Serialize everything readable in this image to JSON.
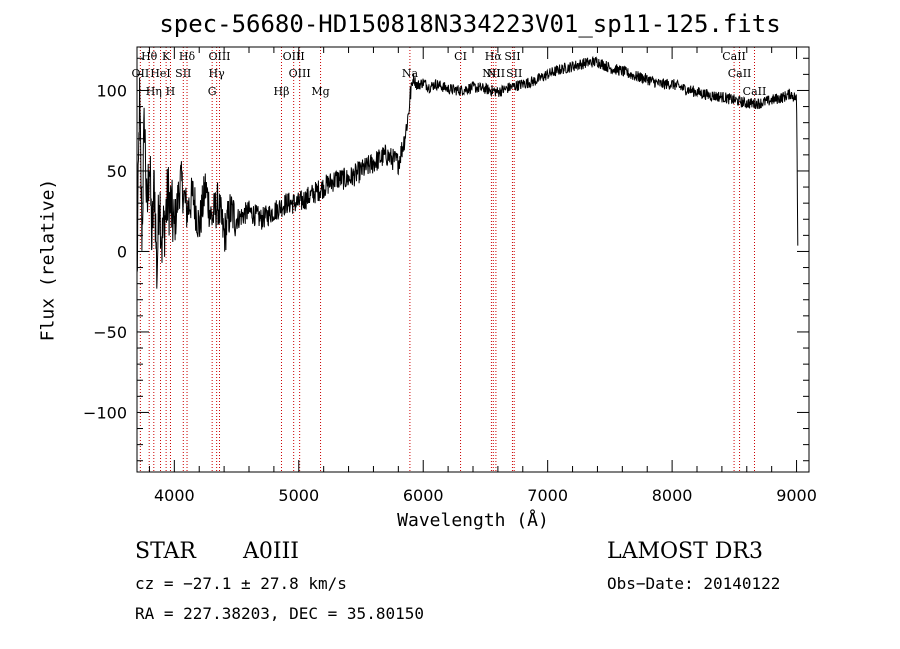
{
  "chart_data": {
    "type": "line",
    "title": "spec-56680-HD150818N334223V01_sp11-125.fits",
    "xlabel": "Wavelength (Å)",
    "ylabel": "Flux (relative)",
    "xlim": [
      3700,
      9100
    ],
    "ylim": [
      -137,
      127
    ],
    "xticks": [
      4000,
      5000,
      6000,
      7000,
      8000,
      9000
    ],
    "xtick_labels": [
      "4000",
      "5000",
      "6000",
      "7000",
      "8000",
      "9000"
    ],
    "yticks": [
      -100,
      -50,
      0,
      50,
      100
    ],
    "ytick_labels": [
      "−100",
      "−50",
      "0",
      "50",
      "100"
    ],
    "series": [
      {
        "name": "spectrum",
        "x": [
          3700,
          3720,
          3740,
          3760,
          3780,
          3800,
          3820,
          3840,
          3860,
          3880,
          3900,
          3950,
          4000,
          4050,
          4100,
          4150,
          4200,
          4250,
          4300,
          4350,
          4400,
          4450,
          4500,
          4600,
          4700,
          4800,
          4900,
          5000,
          5100,
          5200,
          5300,
          5400,
          5500,
          5600,
          5700,
          5800,
          5850,
          5880,
          5900,
          5920,
          5950,
          6000,
          6050,
          6100,
          6200,
          6300,
          6400,
          6500,
          6600,
          6700,
          6800,
          6900,
          7000,
          7100,
          7200,
          7300,
          7400,
          7500,
          7600,
          7700,
          7800,
          7900,
          8000,
          8100,
          8200,
          8300,
          8400,
          8500,
          8600,
          8700,
          8800,
          8900,
          8950,
          9000,
          9010
        ],
        "y": [
          -20,
          95,
          10,
          85,
          20,
          60,
          5,
          45,
          -15,
          40,
          5,
          35,
          15,
          45,
          25,
          35,
          15,
          40,
          20,
          30,
          10,
          25,
          20,
          25,
          20,
          25,
          30,
          30,
          35,
          40,
          45,
          45,
          50,
          55,
          60,
          55,
          70,
          85,
          100,
          108,
          103,
          105,
          102,
          104,
          101,
          100,
          102,
          101,
          99,
          102,
          104,
          106,
          110,
          113,
          115,
          117,
          118,
          114,
          112,
          109,
          107,
          104,
          104,
          101,
          99,
          97,
          96,
          94,
          92,
          92,
          94,
          96,
          98,
          95,
          5
        ]
      }
    ],
    "line_markers": [
      {
        "label": "Hθ",
        "wavelength": 3798,
        "row": 1
      },
      {
        "label": "K",
        "wavelength": 3934,
        "row": 1
      },
      {
        "label": "Hδ",
        "wavelength": 4102,
        "row": 1
      },
      {
        "label": "OIII",
        "wavelength": 4363,
        "row": 1
      },
      {
        "label": "OIII",
        "wavelength": 4959,
        "row": 1
      },
      {
        "label": "CI",
        "wavelength": 6300,
        "row": 1
      },
      {
        "label": "Hα",
        "wavelength": 6563,
        "row": 1
      },
      {
        "label": "SII",
        "wavelength": 6717,
        "row": 1
      },
      {
        "label": "CaII",
        "wavelength": 8498,
        "row": 1
      },
      {
        "label": "OII",
        "wavelength": 3727,
        "row": 2
      },
      {
        "label": "HeI",
        "wavelength": 3889,
        "row": 2
      },
      {
        "label": "SII",
        "wavelength": 4072,
        "row": 2
      },
      {
        "label": "Hγ",
        "wavelength": 4340,
        "row": 2
      },
      {
        "label": "OIII",
        "wavelength": 5007,
        "row": 2
      },
      {
        "label": "Na",
        "wavelength": 5893,
        "row": 2
      },
      {
        "label": "NII",
        "wavelength": 6548,
        "row": 2
      },
      {
        "label": "NII",
        "wavelength": 6584,
        "row": 2
      },
      {
        "label": "SII",
        "wavelength": 6731,
        "row": 2
      },
      {
        "label": "CaII",
        "wavelength": 8542,
        "row": 2
      },
      {
        "label": "Hη",
        "wavelength": 3835,
        "row": 3
      },
      {
        "label": "H",
        "wavelength": 3969,
        "row": 3
      },
      {
        "label": "G",
        "wavelength": 4304,
        "row": 3
      },
      {
        "label": "Hβ",
        "wavelength": 4861,
        "row": 3
      },
      {
        "label": "Mg",
        "wavelength": 5175,
        "row": 3
      },
      {
        "label": "CaII",
        "wavelength": 8662,
        "row": 3
      }
    ]
  },
  "info": {
    "class_label": "STAR",
    "subclass": "A0III",
    "survey": "LAMOST DR3",
    "cz": "cz = −27.1 ± 27.8 km/s",
    "obs_date": "Obs−Date: 20140122",
    "coords": "RA = 227.38203, DEC =  35.80150"
  },
  "colors": {
    "spectrum": "#000000",
    "marker_line": "#cc0000",
    "axis": "#000000"
  }
}
